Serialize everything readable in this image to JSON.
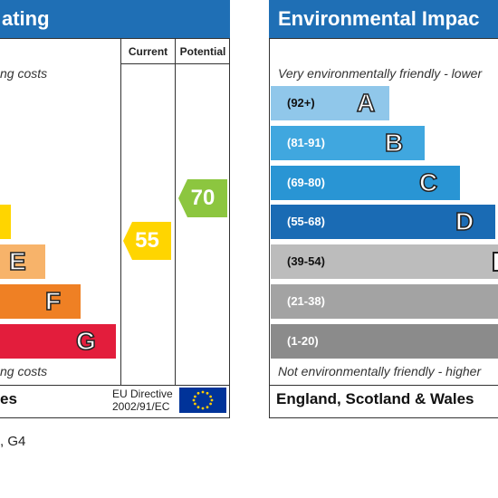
{
  "left_panel": {
    "title": "ating",
    "top_caption": "ng costs",
    "bottom_caption": "ng costs",
    "col_current": "Current",
    "col_potential": "Potential",
    "bars": [
      {
        "letter": "",
        "color": "#ffd500"
      },
      {
        "letter": "E",
        "color": "#f7b36a"
      },
      {
        "letter": "F",
        "color": "#ef8024"
      },
      {
        "letter": "G",
        "color": "#e31d3c"
      }
    ],
    "current_rating": "55",
    "current_color": "#ffd500",
    "potential_rating": "70",
    "potential_color": "#8cc63f",
    "footer_country": "es",
    "eu_directive_line1": "EU Directive",
    "eu_directive_line2": "2002/91/EC"
  },
  "right_panel": {
    "title": "Environmental Impac",
    "top_caption": "Very environmentally friendly - lower",
    "bottom_caption": "Not environmentally friendly - higher",
    "bands": [
      {
        "range": "(92+)",
        "letter": "A",
        "color": "#90c7ea"
      },
      {
        "range": "(81-91)",
        "letter": "B",
        "color": "#40a7df"
      },
      {
        "range": "(69-80)",
        "letter": "C",
        "color": "#2995d4"
      },
      {
        "range": "(55-68)",
        "letter": "D",
        "color": "#1a6bb4"
      },
      {
        "range": "(39-54)",
        "letter": "",
        "color": "#bcbcbc"
      },
      {
        "range": "(21-38)",
        "letter": "",
        "color": "#a3a3a3"
      },
      {
        "range": "(1-20)",
        "letter": "",
        "color": "#8b8b8b"
      }
    ],
    "footer_country": "England, Scotland & Wales"
  },
  "below_text": ", G4"
}
